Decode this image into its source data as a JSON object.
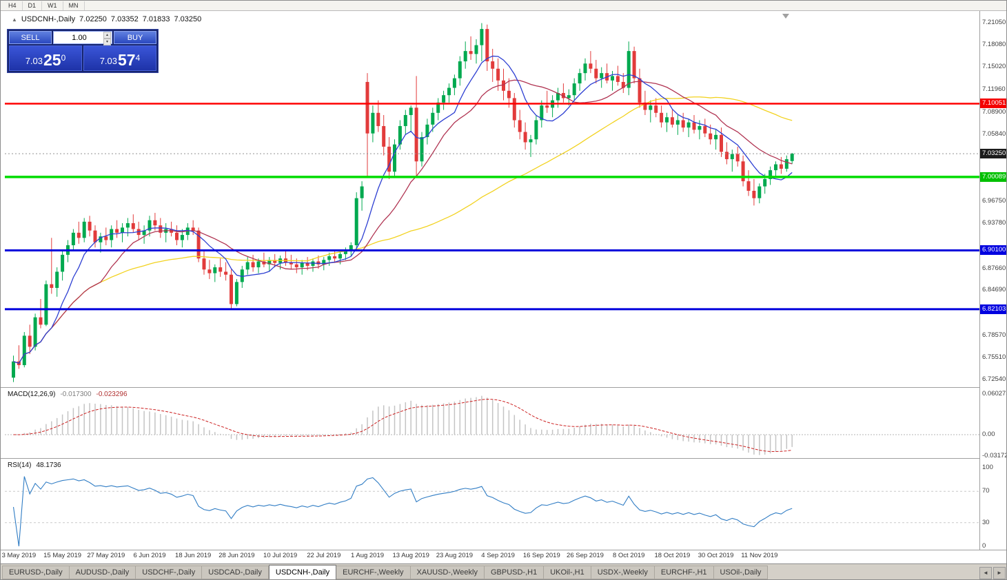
{
  "toolbar": {
    "timeframes": [
      "H4",
      "D1",
      "W1",
      "MN"
    ]
  },
  "window": {
    "title_symbol": "USDCNH-,Daily",
    "ohlc": {
      "open": "7.02250",
      "high": "7.03352",
      "low": "7.01833",
      "close": "7.03250"
    }
  },
  "trade_panel": {
    "sell_label": "SELL",
    "buy_label": "BUY",
    "volume": "1.00",
    "sell_price": {
      "base": "7.03",
      "pips": "25",
      "frac": "0"
    },
    "buy_price": {
      "base": "7.03",
      "pips": "57",
      "frac": "4"
    }
  },
  "price_scale": {
    "labels": [
      {
        "price": 7.2105,
        "text": "7.21050"
      },
      {
        "price": 7.1808,
        "text": "7.18080"
      },
      {
        "price": 7.1502,
        "text": "7.15020"
      },
      {
        "price": 7.1196,
        "text": "7.11960"
      },
      {
        "price": 7.089,
        "text": "7.08900"
      },
      {
        "price": 7.0584,
        "text": "7.05840"
      },
      {
        "price": 6.9675,
        "text": "6.96750"
      },
      {
        "price": 6.9378,
        "text": "6.93780"
      },
      {
        "price": 6.8766,
        "text": "6.87660"
      },
      {
        "price": 6.8469,
        "text": "6.84690"
      },
      {
        "price": 6.7857,
        "text": "6.78570"
      },
      {
        "price": 6.7551,
        "text": "6.75510"
      },
      {
        "price": 6.7254,
        "text": "6.72540"
      }
    ],
    "badges": [
      {
        "price": 7.10051,
        "text": "7.10051",
        "color": "#f40000"
      },
      {
        "price": 7.0325,
        "text": "7.03250",
        "color": "#1c1c1c"
      },
      {
        "price": 7.00089,
        "text": "7.00089",
        "color": "#00c000"
      },
      {
        "price": 6.901,
        "text": "6.90100",
        "color": "#0000e0"
      },
      {
        "price": 6.82103,
        "text": "6.82103",
        "color": "#0000e0"
      }
    ]
  },
  "chart_data": {
    "type": "candlestick",
    "symbol": "USDCNH-",
    "timeframe": "Daily",
    "title": "USDCNH-,Daily 7.02250 7.03352 7.01833 7.03250",
    "y_max": 7.2105,
    "y_min": 6.7254,
    "current_price": 7.0325,
    "colors": {
      "up": "#00a94f",
      "down": "#e23b3b"
    },
    "hlines": [
      {
        "price": 7.10051,
        "color": "#ff0000",
        "width": 2.5
      },
      {
        "price": 7.00089,
        "color": "#00dc00",
        "width": 3.5
      },
      {
        "price": 6.901,
        "color": "#0000dc",
        "width": 3
      },
      {
        "price": 6.82103,
        "color": "#0000dc",
        "width": 3
      }
    ],
    "mas": [
      {
        "period": 55,
        "color": "#f2d21f"
      },
      {
        "period": 17,
        "color": "#b03351"
      },
      {
        "period": 8,
        "color": "#2c3ed2"
      }
    ],
    "candles": [
      [
        6.728,
        6.758,
        6.722,
        6.75
      ],
      [
        6.75,
        6.772,
        6.74,
        6.745
      ],
      [
        6.745,
        6.79,
        6.742,
        6.785
      ],
      [
        6.785,
        6.8,
        6.76,
        6.77
      ],
      [
        6.77,
        6.815,
        6.765,
        6.81
      ],
      [
        6.81,
        6.835,
        6.795,
        6.8
      ],
      [
        6.8,
        6.86,
        6.798,
        6.855
      ],
      [
        6.855,
        6.918,
        6.842,
        6.85
      ],
      [
        6.85,
        6.878,
        6.838,
        6.872
      ],
      [
        6.872,
        6.9,
        6.86,
        6.895
      ],
      [
        6.895,
        6.915,
        6.885,
        6.908
      ],
      [
        6.908,
        6.93,
        6.9,
        6.925
      ],
      [
        6.925,
        6.94,
        6.91,
        6.918
      ],
      [
        6.918,
        6.945,
        6.912,
        6.94
      ],
      [
        6.94,
        6.948,
        6.92,
        6.928
      ],
      [
        6.928,
        6.935,
        6.905,
        6.912
      ],
      [
        6.912,
        6.925,
        6.898,
        6.92
      ],
      [
        6.92,
        6.932,
        6.908,
        6.915
      ],
      [
        6.915,
        6.935,
        6.905,
        6.93
      ],
      [
        6.93,
        6.942,
        6.918,
        6.925
      ],
      [
        6.925,
        6.938,
        6.912,
        6.932
      ],
      [
        6.932,
        6.945,
        6.92,
        6.938
      ],
      [
        6.938,
        6.95,
        6.925,
        6.93
      ],
      [
        6.93,
        6.94,
        6.915,
        6.922
      ],
      [
        6.922,
        6.935,
        6.91,
        6.928
      ],
      [
        6.928,
        6.948,
        6.92,
        6.942
      ],
      [
        6.942,
        6.952,
        6.928,
        6.935
      ],
      [
        6.935,
        6.945,
        6.918,
        6.925
      ],
      [
        6.925,
        6.938,
        6.912,
        6.93
      ],
      [
        6.93,
        6.94,
        6.92,
        6.925
      ],
      [
        6.925,
        6.935,
        6.908,
        6.915
      ],
      [
        6.915,
        6.93,
        6.905,
        6.922
      ],
      [
        6.922,
        6.938,
        6.915,
        6.932
      ],
      [
        6.932,
        6.942,
        6.922,
        6.928
      ],
      [
        6.928,
        6.932,
        6.885,
        6.89
      ],
      [
        6.89,
        6.9,
        6.868,
        6.875
      ],
      [
        6.875,
        6.888,
        6.862,
        6.87
      ],
      [
        6.87,
        6.882,
        6.858,
        6.878
      ],
      [
        6.878,
        6.89,
        6.865,
        6.872
      ],
      [
        6.872,
        6.885,
        6.86,
        6.868
      ],
      [
        6.868,
        6.875,
        6.82,
        6.828
      ],
      [
        6.828,
        6.862,
        6.825,
        6.858
      ],
      [
        6.858,
        6.88,
        6.85,
        6.875
      ],
      [
        6.875,
        6.892,
        6.868,
        6.885
      ],
      [
        6.885,
        6.895,
        6.872,
        6.878
      ],
      [
        6.878,
        6.89,
        6.87,
        6.886
      ],
      [
        6.886,
        6.898,
        6.878,
        6.882
      ],
      [
        6.882,
        6.892,
        6.872,
        6.888
      ],
      [
        6.888,
        6.896,
        6.878,
        6.884
      ],
      [
        6.884,
        6.894,
        6.875,
        6.89
      ],
      [
        6.89,
        6.9,
        6.88,
        6.885
      ],
      [
        6.885,
        6.895,
        6.875,
        6.882
      ],
      [
        6.882,
        6.89,
        6.87,
        6.878
      ],
      [
        6.878,
        6.888,
        6.868,
        6.884
      ],
      [
        6.884,
        6.892,
        6.874,
        6.88
      ],
      [
        6.88,
        6.89,
        6.872,
        6.886
      ],
      [
        6.886,
        6.894,
        6.876,
        6.882
      ],
      [
        6.882,
        6.892,
        6.874,
        6.888
      ],
      [
        6.888,
        6.898,
        6.88,
        6.893
      ],
      [
        6.893,
        6.902,
        6.884,
        6.89
      ],
      [
        6.89,
        6.9,
        6.882,
        6.896
      ],
      [
        6.896,
        6.905,
        6.888,
        6.9
      ],
      [
        6.9,
        6.912,
        6.893,
        6.908
      ],
      [
        6.908,
        6.98,
        6.902,
        6.972
      ],
      [
        6.972,
        6.995,
        6.955,
        6.988
      ],
      [
        7.13,
        7.142,
        7.0,
        7.06
      ],
      [
        7.06,
        7.098,
        7.048,
        7.088
      ],
      [
        7.088,
        7.105,
        7.062,
        7.07
      ],
      [
        7.07,
        7.085,
        7.03,
        7.042
      ],
      [
        7.042,
        7.055,
        6.998,
        7.008
      ],
      [
        7.008,
        7.052,
        7.002,
        7.045
      ],
      [
        7.045,
        7.078,
        7.038,
        7.07
      ],
      [
        7.07,
        7.092,
        7.058,
        7.085
      ],
      [
        7.085,
        7.098,
        7.062,
        7.095
      ],
      [
        7.095,
        7.138,
        7.0,
        7.022
      ],
      [
        7.022,
        7.062,
        7.015,
        7.055
      ],
      [
        7.055,
        7.08,
        7.045,
        7.072
      ],
      [
        7.072,
        7.095,
        7.062,
        7.088
      ],
      [
        7.088,
        7.108,
        7.078,
        7.102
      ],
      [
        7.102,
        7.118,
        7.092,
        7.112
      ],
      [
        7.112,
        7.128,
        7.102,
        7.122
      ],
      [
        7.122,
        7.14,
        7.112,
        7.135
      ],
      [
        7.135,
        7.165,
        7.125,
        7.158
      ],
      [
        7.158,
        7.185,
        7.148,
        7.172
      ],
      [
        7.172,
        7.192,
        7.16,
        7.168
      ],
      [
        7.168,
        7.188,
        7.155,
        7.18
      ],
      [
        7.18,
        7.21,
        7.158,
        7.202
      ],
      [
        7.202,
        7.208,
        7.145,
        7.158
      ],
      [
        7.158,
        7.175,
        7.13,
        7.148
      ],
      [
        7.148,
        7.162,
        7.118,
        7.132
      ],
      [
        7.132,
        7.148,
        7.105,
        7.118
      ],
      [
        7.118,
        7.135,
        7.095,
        7.108
      ],
      [
        7.108,
        7.115,
        7.068,
        7.078
      ],
      [
        7.078,
        7.092,
        7.052,
        7.062
      ],
      [
        7.062,
        7.075,
        7.038,
        7.048
      ],
      [
        7.048,
        7.058,
        7.028,
        7.052
      ],
      [
        7.052,
        7.085,
        7.045,
        7.078
      ],
      [
        7.078,
        7.105,
        7.068,
        7.098
      ],
      [
        7.098,
        7.118,
        7.088,
        7.095
      ],
      [
        7.095,
        7.112,
        7.082,
        7.105
      ],
      [
        7.105,
        7.122,
        7.095,
        7.115
      ],
      [
        7.115,
        7.128,
        7.102,
        7.108
      ],
      [
        7.108,
        7.12,
        7.098,
        7.112
      ],
      [
        7.112,
        7.135,
        7.105,
        7.128
      ],
      [
        7.128,
        7.148,
        7.118,
        7.142
      ],
      [
        7.142,
        7.162,
        7.132,
        7.155
      ],
      [
        7.155,
        7.172,
        7.142,
        7.148
      ],
      [
        7.148,
        7.16,
        7.128,
        7.135
      ],
      [
        7.135,
        7.15,
        7.122,
        7.142
      ],
      [
        7.142,
        7.155,
        7.128,
        7.132
      ],
      [
        7.132,
        7.145,
        7.118,
        7.138
      ],
      [
        7.138,
        7.152,
        7.125,
        7.13
      ],
      [
        7.13,
        7.142,
        7.115,
        7.122
      ],
      [
        7.122,
        7.185,
        7.112,
        7.172
      ],
      [
        7.172,
        7.178,
        7.128,
        7.135
      ],
      [
        7.135,
        7.148,
        7.095,
        7.102
      ],
      [
        7.102,
        7.118,
        7.085,
        7.092
      ],
      [
        7.092,
        7.105,
        7.075,
        7.098
      ],
      [
        7.098,
        7.108,
        7.082,
        7.088
      ],
      [
        7.088,
        7.098,
        7.068,
        7.075
      ],
      [
        7.075,
        7.088,
        7.062,
        7.082
      ],
      [
        7.082,
        7.092,
        7.068,
        7.072
      ],
      [
        7.072,
        7.085,
        7.058,
        7.078
      ],
      [
        7.078,
        7.088,
        7.062,
        7.068
      ],
      [
        7.068,
        7.08,
        7.055,
        7.075
      ],
      [
        7.075,
        7.085,
        7.06,
        7.065
      ],
      [
        7.065,
        7.078,
        7.052,
        7.07
      ],
      [
        7.07,
        7.08,
        7.055,
        7.06
      ],
      [
        7.06,
        7.072,
        7.045,
        7.052
      ],
      [
        7.052,
        7.065,
        7.038,
        7.058
      ],
      [
        7.058,
        7.068,
        7.028,
        7.035
      ],
      [
        7.035,
        7.048,
        7.018,
        7.025
      ],
      [
        7.025,
        7.038,
        7.008,
        7.032
      ],
      [
        7.032,
        7.042,
        7.015,
        7.022
      ],
      [
        7.022,
        7.03,
        6.988,
        6.995
      ],
      [
        6.995,
        7.01,
        6.975,
        6.982
      ],
      [
        6.982,
        6.998,
        6.962,
        6.972
      ],
      [
        6.972,
        6.992,
        6.965,
        6.988
      ],
      [
        6.988,
        7.005,
        6.978,
        6.998
      ],
      [
        6.998,
        7.015,
        6.99,
        7.01
      ],
      [
        7.01,
        7.022,
        7.0,
        7.018
      ],
      [
        7.018,
        7.028,
        7.005,
        7.012
      ],
      [
        7.012,
        7.03,
        7.008,
        7.025
      ],
      [
        7.0225,
        7.03352,
        7.01833,
        7.0325
      ]
    ],
    "x_labels": [
      {
        "index": 1,
        "label": "3 May 2019"
      },
      {
        "index": 9,
        "label": "15 May 2019"
      },
      {
        "index": 17,
        "label": "27 May 2019"
      },
      {
        "index": 25,
        "label": "6 Jun 2019"
      },
      {
        "index": 33,
        "label": "18 Jun 2019"
      },
      {
        "index": 41,
        "label": "28 Jun 2019"
      },
      {
        "index": 49,
        "label": "10 Jul 2019"
      },
      {
        "index": 57,
        "label": "22 Jul 2019"
      },
      {
        "index": 65,
        "label": "1 Aug 2019"
      },
      {
        "index": 73,
        "label": "13 Aug 2019"
      },
      {
        "index": 81,
        "label": "23 Aug 2019"
      },
      {
        "index": 89,
        "label": "4 Sep 2019"
      },
      {
        "index": 97,
        "label": "16 Sep 2019"
      },
      {
        "index": 105,
        "label": "26 Sep 2019"
      },
      {
        "index": 113,
        "label": "8 Oct 2019"
      },
      {
        "index": 121,
        "label": "18 Oct 2019"
      },
      {
        "index": 129,
        "label": "30 Oct 2019"
      },
      {
        "index": 137,
        "label": "11 Nov 2019"
      }
    ],
    "macd": {
      "label": "MACD(12,26,9)",
      "value_main": "-0.017300",
      "value_signal": "-0.023296",
      "params": [
        12,
        26,
        9
      ],
      "scale": [
        {
          "v": 0.060273,
          "text": "0.060273"
        },
        {
          "v": 0,
          "text": "0.00"
        },
        {
          "v": -0.0317253,
          "text": "-0.0317253"
        }
      ]
    },
    "rsi": {
      "label": "RSI(14)",
      "value": "48.1736",
      "period": 14,
      "levels": [
        {
          "v": 100,
          "text": "100"
        },
        {
          "v": 70,
          "text": "70"
        },
        {
          "v": 30,
          "text": "30"
        },
        {
          "v": 0,
          "text": "0"
        }
      ],
      "dashed": [
        70,
        30
      ]
    }
  },
  "tabs": {
    "active_index": 4,
    "items": [
      "EURUSD-,Daily",
      "AUDUSD-,Daily",
      "USDCHF-,Daily",
      "USDCAD-,Daily",
      "USDCNH-,Daily",
      "EURCHF-,Weekly",
      "XAUUSD-,Weekly",
      "GBPUSD-,H1",
      "UKOil-,H1",
      "USDX-,Weekly",
      "EURCHF-,H1",
      "USOil-,Daily"
    ]
  }
}
